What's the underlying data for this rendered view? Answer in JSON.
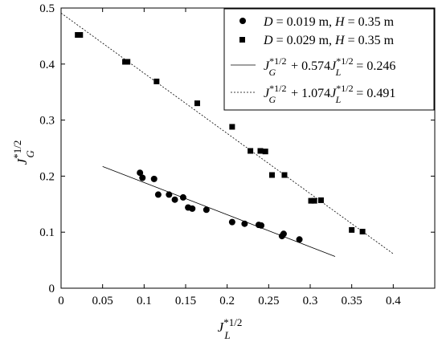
{
  "chart_data": {
    "type": "scatter",
    "xlim": [
      0,
      0.45
    ],
    "ylim": [
      0,
      0.5
    ],
    "x_ticks": [
      "0",
      "0.05",
      "0.1",
      "0.15",
      "0.2",
      "0.25",
      "0.3",
      "0.35",
      "0.4"
    ],
    "y_ticks": [
      "0",
      "0.1",
      "0.2",
      "0.3",
      "0.4",
      "0.5"
    ],
    "xlabel": {
      "base": "J",
      "sup": "*1/2",
      "sub": "L"
    },
    "ylabel": {
      "base": "J",
      "sup": "*1/2",
      "sub": "G"
    },
    "legend_position": "top-right",
    "grid": false,
    "series": [
      {
        "kind": "points",
        "marker": "circle",
        "legend": {
          "D": "0.019",
          "H": "0.35",
          "unit": "m"
        },
        "points": [
          [
            0.095,
            0.206
          ],
          [
            0.098,
            0.197
          ],
          [
            0.112,
            0.195
          ],
          [
            0.117,
            0.167
          ],
          [
            0.13,
            0.167
          ],
          [
            0.137,
            0.158
          ],
          [
            0.147,
            0.162
          ],
          [
            0.153,
            0.144
          ],
          [
            0.158,
            0.142
          ],
          [
            0.175,
            0.14
          ],
          [
            0.206,
            0.118
          ],
          [
            0.221,
            0.115
          ],
          [
            0.238,
            0.113
          ],
          [
            0.241,
            0.112
          ],
          [
            0.266,
            0.093
          ],
          [
            0.268,
            0.097
          ],
          [
            0.287,
            0.087
          ]
        ]
      },
      {
        "kind": "points",
        "marker": "square",
        "legend": {
          "D": "0.029",
          "H": "0.35",
          "unit": "m"
        },
        "points": [
          [
            0.02,
            0.452
          ],
          [
            0.023,
            0.452
          ],
          [
            0.077,
            0.404
          ],
          [
            0.08,
            0.404
          ],
          [
            0.115,
            0.369
          ],
          [
            0.164,
            0.33
          ],
          [
            0.206,
            0.288
          ],
          [
            0.228,
            0.245
          ],
          [
            0.24,
            0.245
          ],
          [
            0.246,
            0.244
          ],
          [
            0.254,
            0.202
          ],
          [
            0.269,
            0.202
          ],
          [
            0.301,
            0.156
          ],
          [
            0.305,
            0.156
          ],
          [
            0.313,
            0.157
          ],
          [
            0.35,
            0.104
          ],
          [
            0.363,
            0.101
          ]
        ]
      },
      {
        "kind": "line",
        "dash": "solid",
        "x_range": [
          0.05,
          0.33
        ],
        "slope": 0.574,
        "intercept": 0.246,
        "legend": {
          "a": "0.574",
          "c": "0.246"
        }
      },
      {
        "kind": "line",
        "dash": "dotted",
        "x_range": [
          0.0,
          0.4
        ],
        "slope": 1.074,
        "intercept": 0.491,
        "legend": {
          "a": "1.074",
          "c": "0.491"
        }
      }
    ]
  }
}
